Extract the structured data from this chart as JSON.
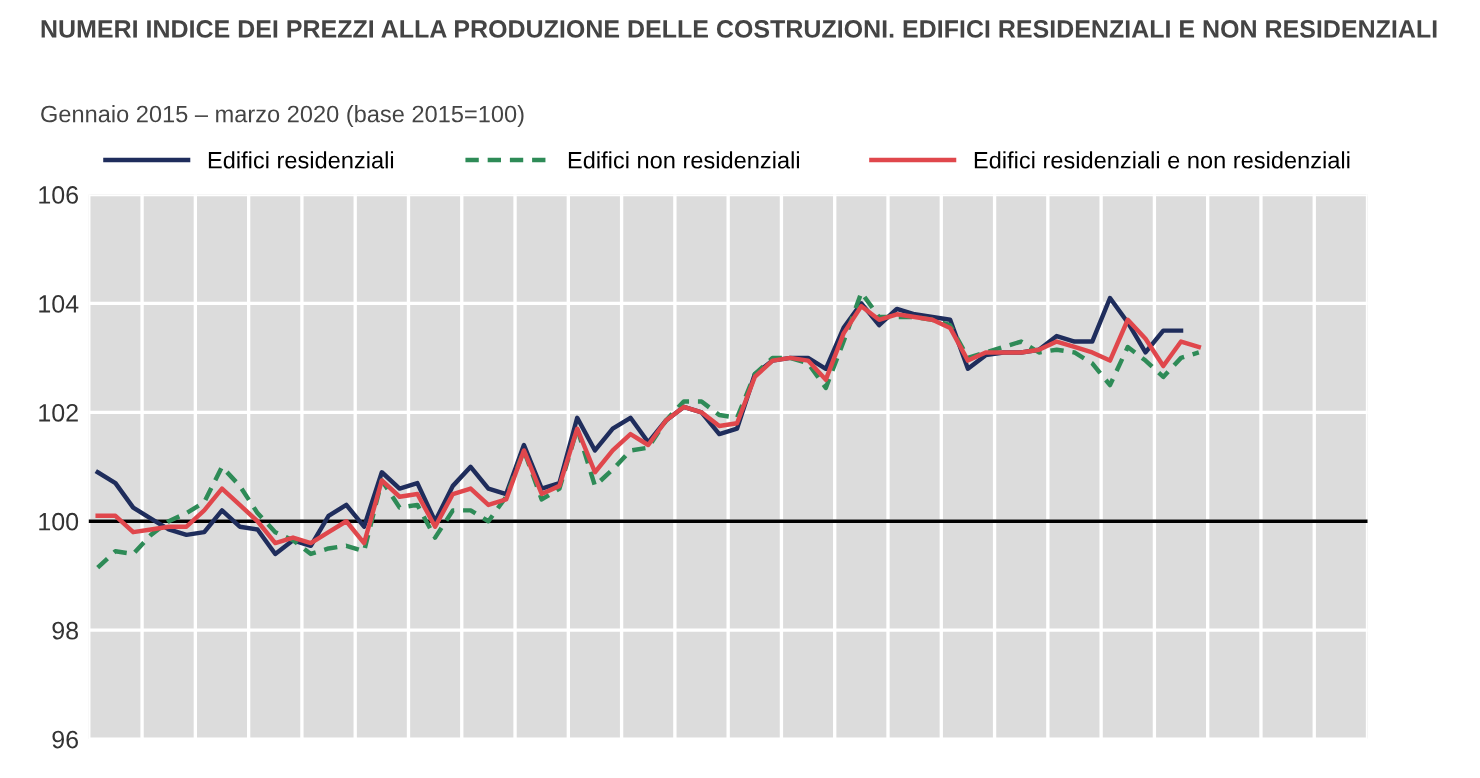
{
  "chart_data": {
    "type": "line",
    "title": "NUMERI INDICE DEI PREZZI ALLA PRODUZIONE DELLE COSTRUZIONI. EDIFICI RESIDENZIALI E NON RESIDENZIALI",
    "subtitle": "Gennaio 2015 – marzo 2020 (base 2015=100)",
    "categories": [
      null,
      null,
      null,
      null,
      null,
      null,
      null,
      null,
      null,
      null,
      null,
      null,
      null,
      null,
      null,
      null,
      null,
      null,
      null,
      null,
      null,
      null,
      null,
      null,
      null,
      null,
      null,
      null,
      null,
      null,
      null,
      null,
      null,
      null,
      null,
      null,
      null,
      null,
      null,
      null,
      null,
      null,
      null,
      null,
      null,
      null,
      null,
      null,
      null,
      null,
      null,
      null,
      null,
      null,
      null,
      null,
      null,
      null,
      null,
      null,
      null,
      null,
      null,
      null,
      null,
      null,
      null,
      null,
      null,
      null,
      null,
      null
    ],
    "series": [
      {
        "name": "Edifici residenziali",
        "color": "#1f2d5c",
        "line_style": "solid",
        "values": [
          100.9,
          100.7,
          100.25,
          100.05,
          99.85,
          99.75,
          99.8,
          100.2,
          99.9,
          99.85,
          99.4,
          99.65,
          99.55,
          100.1,
          100.3,
          99.9,
          100.9,
          100.6,
          100.7,
          100.0,
          100.65,
          101.0,
          100.6,
          100.5,
          101.4,
          100.6,
          100.7,
          101.9,
          101.3,
          101.7,
          101.9,
          101.45,
          101.85,
          102.1,
          102.0,
          101.6,
          101.7,
          102.7,
          102.95,
          103.0,
          103.0,
          102.8,
          103.55,
          104.0,
          103.6,
          103.9,
          103.8,
          103.75,
          103.7,
          102.8,
          103.05,
          103.1,
          103.1,
          103.15,
          103.4,
          103.3,
          103.3,
          104.1,
          103.65,
          103.1,
          103.5,
          103.5,
          null,
          null,
          null,
          null,
          null,
          null,
          null,
          null,
          null,
          null
        ]
      },
      {
        "name": "Edifici non residenziali",
        "color": "#2e8b57",
        "line_style": "dashed",
        "values": [
          99.15,
          99.45,
          99.4,
          99.75,
          100.0,
          100.15,
          100.35,
          101.0,
          100.65,
          100.15,
          99.8,
          99.65,
          99.4,
          99.5,
          99.55,
          99.45,
          100.75,
          100.25,
          100.3,
          99.7,
          100.2,
          100.2,
          100.0,
          100.45,
          101.3,
          100.4,
          100.6,
          101.7,
          100.65,
          100.95,
          101.3,
          101.35,
          101.85,
          102.2,
          102.2,
          101.95,
          101.9,
          102.7,
          103.0,
          103.0,
          102.9,
          102.45,
          103.3,
          104.2,
          103.75,
          103.75,
          103.75,
          103.7,
          103.6,
          103.0,
          103.1,
          103.2,
          103.3,
          103.1,
          103.15,
          103.1,
          102.9,
          102.5,
          103.2,
          102.95,
          102.65,
          103.0,
          103.1,
          null,
          null,
          null,
          null,
          null,
          null,
          null,
          null,
          null
        ]
      },
      {
        "name": "Edifici residenziali e non residenziali",
        "color": "#e0474c",
        "line_style": "solid",
        "values": [
          100.1,
          100.1,
          99.8,
          99.85,
          99.9,
          99.9,
          100.2,
          100.6,
          100.3,
          100.0,
          99.6,
          99.7,
          99.6,
          99.8,
          100.0,
          99.6,
          100.75,
          100.45,
          100.5,
          99.9,
          100.5,
          100.6,
          100.3,
          100.4,
          101.3,
          100.5,
          100.65,
          101.7,
          100.9,
          101.3,
          101.6,
          101.4,
          101.85,
          102.1,
          102.0,
          101.75,
          101.8,
          102.65,
          102.95,
          103.0,
          102.95,
          102.6,
          103.45,
          103.95,
          103.7,
          103.8,
          103.75,
          103.7,
          103.55,
          102.95,
          103.1,
          103.1,
          103.1,
          103.15,
          103.3,
          103.2,
          103.1,
          102.95,
          103.7,
          103.35,
          102.85,
          103.3,
          103.2,
          null,
          null,
          null,
          null,
          null,
          null,
          null,
          null,
          null
        ]
      }
    ],
    "ylim": [
      96,
      106
    ],
    "yticks": [
      96,
      98,
      100,
      102,
      104,
      106
    ],
    "ref_lines": [
      {
        "axis": "y",
        "value": 100,
        "color": "#000000"
      }
    ],
    "grid": true,
    "legend": "top",
    "marker": "none"
  }
}
